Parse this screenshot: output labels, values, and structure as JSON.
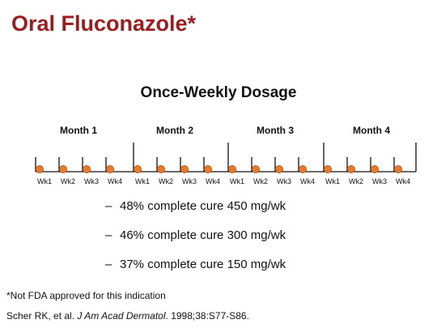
{
  "title": "Oral Fluconazole*",
  "subtitle": "Once-Weekly Dosage",
  "months": [
    "Month 1",
    "Month 2",
    "Month 3",
    "Month 4"
  ],
  "weeks": [
    "Wk1",
    "Wk2",
    "Wk3",
    "Wk4"
  ],
  "colors": {
    "title": "#9e1b1e",
    "dot": "#e8792b",
    "dot_stroke": "#b55212"
  },
  "bullets": [
    {
      "dash": "–",
      "text": "48% complete cure 450 mg/wk"
    },
    {
      "dash": "–",
      "text": "46% complete cure 300 mg/wk"
    },
    {
      "dash": "–",
      "text": "37% complete cure 150 mg/wk"
    }
  ],
  "footnote": "*Not FDA approved for this indication",
  "citation": {
    "authors": "Scher RK, et al. ",
    "journal": "J Am Acad Dermatol",
    "details": ". 1998;38:S77-S86."
  }
}
